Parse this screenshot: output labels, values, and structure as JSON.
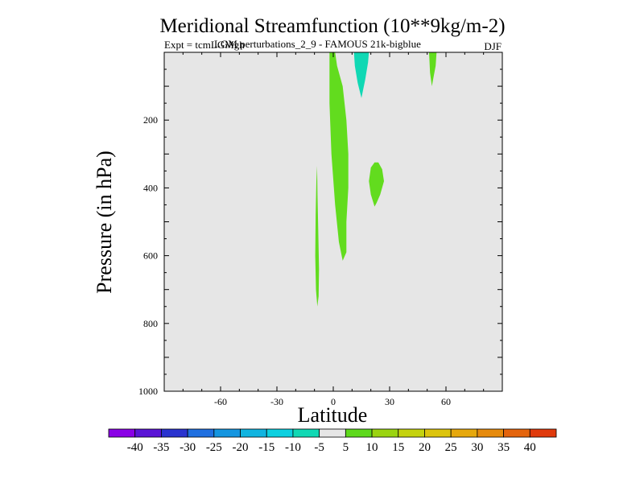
{
  "chart_data": {
    "type": "contour",
    "title": "Meridional Streamfunction (10**9kg/m-2)",
    "subtitle_left": "Expt = tcmLGMgh",
    "subtitle_overlay": "LGM perturbations_2_9 - FAMOUS 21k-bigblue",
    "subtitle_right": "DJF",
    "xlabel": "Latitude",
    "ylabel": "Pressure (in hPa)",
    "xlim": [
      -90,
      90
    ],
    "ylim": [
      1000,
      0
    ],
    "x_ticks": [
      -60,
      -30,
      0,
      30,
      60
    ],
    "x_tick_labels": [
      "-60",
      "-30",
      "0",
      "30",
      "60"
    ],
    "y_ticks": [
      200,
      400,
      600,
      800,
      1000
    ],
    "y_tick_labels": [
      "200",
      "400",
      "600",
      "800",
      "1000"
    ],
    "background_color": "#e6e6e6",
    "colorbar": {
      "labels": [
        "-40",
        "-35",
        "-30",
        "-25",
        "-20",
        "-15",
        "-10",
        "-5",
        "5",
        "10",
        "15",
        "20",
        "25",
        "30",
        "35",
        "40"
      ],
      "colors": [
        "#8a00e6",
        "#5a14d6",
        "#2a33cf",
        "#1f6fe0",
        "#1495e0",
        "#10b4e0",
        "#0cd0e0",
        "#10d8b4",
        "#e6e6e6",
        "#5ed91c",
        "#9ad410",
        "#c4d20e",
        "#dcc40c",
        "#e6a80c",
        "#e68a0c",
        "#e4640c",
        "#e03a0c"
      ]
    },
    "regions": [
      {
        "name": "green-column-equator",
        "level": "5 to 10",
        "color": "#62dc1e",
        "points": [
          [
            -2,
            0
          ],
          [
            1,
            0
          ],
          [
            2,
            40
          ],
          [
            5,
            100
          ],
          [
            7,
            200
          ],
          [
            8,
            300
          ],
          [
            8,
            400
          ],
          [
            7,
            500
          ],
          [
            7,
            590
          ],
          [
            5,
            615
          ],
          [
            3,
            560
          ],
          [
            1,
            450
          ],
          [
            -1,
            300
          ],
          [
            -2,
            150
          ],
          [
            -2,
            50
          ]
        ]
      },
      {
        "name": "green-sliver-south",
        "level": "5 to 10",
        "color": "#62dc1e",
        "points": [
          [
            -8.6,
            335
          ],
          [
            -8.4,
            420
          ],
          [
            -8.0,
            520
          ],
          [
            -7.6,
            640
          ],
          [
            -7.8,
            720
          ],
          [
            -8.5,
            750
          ],
          [
            -9.2,
            700
          ],
          [
            -9.6,
            600
          ],
          [
            -9.4,
            480
          ],
          [
            -9.0,
            380
          ]
        ]
      },
      {
        "name": "green-blob-midlat",
        "level": "5 to 10",
        "color": "#62dc1e",
        "points": [
          [
            24,
            325
          ],
          [
            26,
            345
          ],
          [
            27,
            380
          ],
          [
            25,
            420
          ],
          [
            23,
            445
          ],
          [
            22,
            455
          ],
          [
            20,
            420
          ],
          [
            19,
            380
          ],
          [
            20,
            340
          ],
          [
            22,
            325
          ]
        ]
      },
      {
        "name": "green-top-north",
        "level": "5 to 10",
        "color": "#62dc1e",
        "points": [
          [
            51,
            0
          ],
          [
            55,
            0
          ],
          [
            54.5,
            40
          ],
          [
            53.5,
            70
          ],
          [
            52.5,
            100
          ],
          [
            51.5,
            60
          ]
        ]
      },
      {
        "name": "teal-top-tropics",
        "level": "-5 to -10",
        "color": "#10d8b4",
        "points": [
          [
            11,
            0
          ],
          [
            19,
            0
          ],
          [
            18.5,
            30
          ],
          [
            17,
            80
          ],
          [
            15,
            135
          ],
          [
            13,
            90
          ],
          [
            11.5,
            40
          ]
        ]
      }
    ]
  }
}
